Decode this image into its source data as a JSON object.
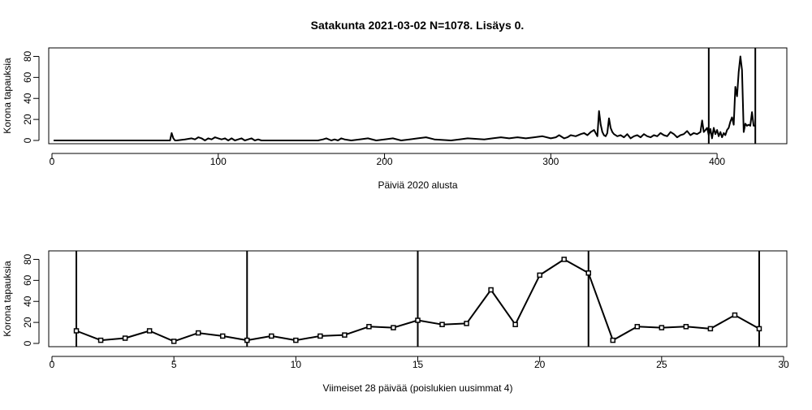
{
  "title": "Satakunta 2021-03-02 N=1078. Lisäys 0.",
  "chart_data": [
    {
      "type": "line",
      "xlabel": "Päiviä 2020 alusta",
      "ylabel": "Korona tapauksia",
      "xlim": [
        0,
        440
      ],
      "ylim": [
        0,
        85
      ],
      "xticks": [
        0,
        100,
        200,
        300,
        400
      ],
      "yticks": [
        0,
        20,
        40,
        60,
        80
      ],
      "vlines": [
        395,
        423
      ],
      "segments": [
        {
          "x": [
            1,
            70
          ],
          "y": [
            0,
            0
          ]
        }
      ],
      "x": [
        70,
        71,
        72,
        73,
        74,
        75,
        80,
        84,
        86,
        88,
        90,
        92,
        94,
        96,
        98,
        100,
        102,
        104,
        106,
        108,
        110,
        112,
        114,
        116,
        118,
        120,
        122,
        124,
        126,
        130,
        160,
        163,
        165,
        168,
        170,
        172,
        174,
        176,
        180,
        185,
        190,
        195,
        200,
        205,
        210,
        215,
        220,
        225,
        230,
        240,
        245,
        250,
        260,
        265,
        270,
        275,
        280,
        285,
        290,
        295,
        300,
        303,
        305,
        308,
        310,
        312,
        315,
        318,
        320,
        322,
        324,
        326,
        328,
        329,
        330,
        331,
        332,
        333,
        334,
        335,
        336,
        337,
        338,
        340,
        342,
        344,
        346,
        348,
        350,
        352,
        354,
        356,
        358,
        360,
        362,
        364,
        366,
        368,
        370,
        372,
        374,
        376,
        378,
        380,
        382,
        384,
        386,
        388,
        390,
        391,
        392,
        393,
        394,
        395,
        396,
        397,
        398,
        399,
        400,
        401,
        402,
        403,
        404,
        405,
        406,
        407,
        408,
        409,
        410,
        411,
        412,
        413,
        414,
        415,
        416,
        417,
        418,
        419,
        420,
        421,
        422,
        423
      ],
      "y": [
        0,
        0,
        7,
        2,
        0,
        0,
        1,
        2,
        1,
        3,
        2,
        0,
        2,
        1,
        3,
        2,
        1,
        2,
        0,
        2,
        0,
        1,
        2,
        0,
        1,
        2,
        0,
        1,
        0,
        0,
        0,
        1,
        2,
        0,
        1,
        0,
        2,
        1,
        0,
        1,
        2,
        0,
        1,
        2,
        0,
        1,
        2,
        3,
        1,
        0,
        1,
        2,
        1,
        2,
        3,
        2,
        3,
        2,
        3,
        4,
        2,
        3,
        5,
        2,
        3,
        5,
        4,
        6,
        7,
        5,
        8,
        10,
        4,
        28,
        15,
        8,
        5,
        4,
        7,
        21,
        12,
        8,
        6,
        4,
        5,
        3,
        6,
        2,
        4,
        5,
        3,
        6,
        4,
        3,
        5,
        4,
        7,
        5,
        4,
        8,
        6,
        3,
        5,
        6,
        9,
        5,
        7,
        6,
        8,
        19,
        8,
        10,
        12,
        5,
        11,
        2,
        12,
        6,
        10,
        4,
        8,
        3,
        7,
        5,
        10,
        12,
        18,
        22,
        15,
        51,
        42,
        65,
        80,
        67,
        8,
        16,
        14,
        15,
        14,
        27,
        14,
        14
      ]
    },
    {
      "type": "line",
      "xlabel": "Viimeiset 28 päivää (poislukien uusimmat 4)",
      "ylabel": "Korona tapauksia",
      "xlim": [
        0,
        30
      ],
      "ylim": [
        0,
        85
      ],
      "xticks": [
        0,
        5,
        10,
        15,
        20,
        25,
        30
      ],
      "yticks": [
        0,
        20,
        40,
        60,
        80
      ],
      "vlines": [
        1,
        8,
        15,
        22,
        29
      ],
      "x": [
        1,
        2,
        3,
        4,
        5,
        6,
        7,
        8,
        9,
        10,
        11,
        12,
        13,
        14,
        15,
        16,
        17,
        18,
        19,
        20,
        21,
        22,
        23,
        24,
        25,
        26,
        27,
        28,
        29
      ],
      "y": [
        12,
        3,
        5,
        12,
        2,
        10,
        7,
        3,
        7,
        3,
        7,
        8,
        16,
        15,
        22,
        18,
        19,
        51,
        18,
        65,
        80,
        67,
        3,
        16,
        15,
        16,
        14,
        27,
        14
      ]
    }
  ]
}
